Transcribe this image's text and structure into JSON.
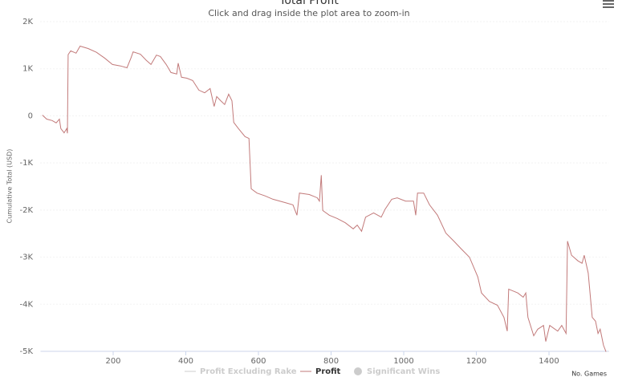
{
  "chart_data": {
    "type": "line",
    "title": "Total Profit",
    "subtitle": "Click and drag inside the plot area to zoom-in",
    "y_label": "Cumulative Total (USD)",
    "x_label": "No. Games",
    "xlim": [
      0,
      1565
    ],
    "xticks": [
      200,
      400,
      600,
      800,
      1000,
      1200,
      1400
    ],
    "ylim": [
      -5000,
      2000
    ],
    "yticks": [
      {
        "value": 2000,
        "label": "2K"
      },
      {
        "value": 1000,
        "label": "1K"
      },
      {
        "value": 0,
        "label": "0"
      },
      {
        "value": -1000,
        "label": "-1K"
      },
      {
        "value": -2000,
        "label": "-2K"
      },
      {
        "value": -3000,
        "label": "-3K"
      },
      {
        "value": -4000,
        "label": "-4K"
      },
      {
        "value": -5000,
        "label": "-5K"
      }
    ],
    "grid": true,
    "series": [
      {
        "name": "Profit",
        "color": "#c27a7a",
        "x": [
          5,
          17,
          32,
          43,
          52,
          56,
          65,
          72,
          74,
          76,
          83,
          98,
          109,
          131,
          154,
          176,
          198,
          220,
          238,
          249,
          255,
          275,
          291,
          304,
          319,
          330,
          346,
          359,
          375,
          379,
          388,
          403,
          419,
          436,
          452,
          467,
          478,
          485,
          496,
          507,
          518,
          527,
          532,
          545,
          563,
          574,
          580,
          596,
          618,
          640,
          673,
          695,
          706,
          713,
          740,
          762,
          768,
          773,
          777,
          795,
          817,
          839,
          861,
          872,
          884,
          895,
          917,
          938,
          949,
          967,
          982,
          1005,
          1027,
          1033,
          1038,
          1055,
          1071,
          1093,
          1116,
          1138,
          1159,
          1181,
          1204,
          1214,
          1236,
          1258,
          1276,
          1285,
          1289,
          1314,
          1329,
          1336,
          1342,
          1358,
          1369,
          1385,
          1391,
          1402,
          1424,
          1435,
          1447,
          1451,
          1462,
          1480,
          1491,
          1497,
          1508,
          1519,
          1528,
          1535,
          1541,
          1550,
          1557
        ],
        "values": [
          15,
          -70,
          -100,
          -150,
          -70,
          -270,
          -360,
          -270,
          -370,
          1300,
          1380,
          1330,
          1480,
          1430,
          1350,
          1230,
          1090,
          1060,
          1020,
          1230,
          1360,
          1310,
          1180,
          1090,
          1290,
          1260,
          1090,
          920,
          890,
          1120,
          820,
          800,
          750,
          545,
          490,
          580,
          200,
          410,
          320,
          240,
          460,
          320,
          -140,
          -270,
          -440,
          -480,
          -1550,
          -1640,
          -1700,
          -1770,
          -1840,
          -1890,
          -2110,
          -1640,
          -1670,
          -1740,
          -1810,
          -1260,
          -2010,
          -2110,
          -2180,
          -2270,
          -2400,
          -2320,
          -2450,
          -2150,
          -2060,
          -2150,
          -1980,
          -1770,
          -1740,
          -1810,
          -1810,
          -2110,
          -1640,
          -1640,
          -1890,
          -2110,
          -2490,
          -2660,
          -2830,
          -3000,
          -3420,
          -3760,
          -3940,
          -4020,
          -4280,
          -4570,
          -3680,
          -3760,
          -3850,
          -3760,
          -4280,
          -4670,
          -4530,
          -4450,
          -4790,
          -4450,
          -4570,
          -4450,
          -4620,
          -2660,
          -2960,
          -3080,
          -3130,
          -2960,
          -3340,
          -4280,
          -4360,
          -4620,
          -4530,
          -4870,
          -5010
        ]
      }
    ],
    "hidden_series": [
      {
        "name": "Profit Excluding Rake",
        "symbol": "line",
        "color": "#cccccc"
      },
      {
        "name": "Significant Wins",
        "symbol": "circle",
        "color": "#cccccc"
      }
    ]
  }
}
